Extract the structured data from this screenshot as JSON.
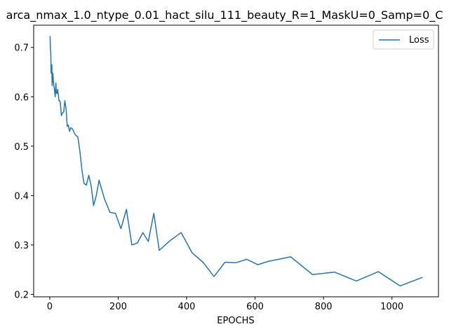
{
  "chart_data": {
    "type": "line",
    "title": "arca_nmax_1.0_ntype_0.01_hact_silu_111_beauty_R=1_MaskU=0_Samp=0_C",
    "xlabel": "EPOCHS",
    "ylabel": "",
    "xlim": [
      -47,
      1136
    ],
    "ylim": [
      0.195,
      0.745
    ],
    "xticks": [
      0,
      200,
      400,
      600,
      800,
      1000
    ],
    "yticks": [
      0.2,
      0.3,
      0.4,
      0.5,
      0.6,
      0.7
    ],
    "xtick_labels": [
      "0",
      "200",
      "400",
      "600",
      "800",
      "1000"
    ],
    "ytick_labels": [
      "0.2",
      "0.3",
      "0.4",
      "0.5",
      "0.6",
      "0.7"
    ],
    "grid": false,
    "legend": {
      "position": "top-right",
      "entries": [
        "Loss"
      ]
    },
    "series": [
      {
        "name": "Loss",
        "color": "#1f77b4",
        "x": [
          1,
          2,
          3,
          4,
          6,
          7,
          8,
          9,
          11,
          12,
          14,
          16,
          18,
          19,
          21,
          23,
          25,
          27,
          29,
          31,
          34,
          37,
          41,
          44,
          48,
          51,
          54,
          58,
          61,
          65,
          68,
          72,
          76,
          82,
          88,
          94,
          100,
          107,
          114,
          121,
          128,
          136,
          144,
          160,
          176,
          192,
          208,
          224,
          240,
          256,
          272,
          288,
          304,
          320,
          352,
          384,
          416,
          448,
          480,
          512,
          544,
          576,
          608,
          640,
          704,
          768,
          832,
          896,
          960,
          1024,
          1088
        ],
        "y": [
          0.722,
          0.695,
          0.69,
          0.648,
          0.665,
          0.623,
          0.637,
          0.648,
          0.628,
          0.623,
          0.613,
          0.6,
          0.628,
          0.608,
          0.607,
          0.615,
          0.604,
          0.592,
          0.592,
          0.588,
          0.562,
          0.567,
          0.57,
          0.592,
          0.574,
          0.54,
          0.543,
          0.53,
          0.537,
          0.536,
          0.533,
          0.526,
          0.522,
          0.519,
          0.49,
          0.452,
          0.425,
          0.421,
          0.441,
          0.42,
          0.38,
          0.4,
          0.431,
          0.393,
          0.366,
          0.364,
          0.333,
          0.372,
          0.3,
          0.304,
          0.325,
          0.307,
          0.364,
          0.289,
          0.309,
          0.325,
          0.284,
          0.265,
          0.236,
          0.265,
          0.264,
          0.271,
          0.26,
          0.267,
          0.276,
          0.24,
          0.245,
          0.227,
          0.246,
          0.217,
          0.234
        ]
      }
    ]
  }
}
